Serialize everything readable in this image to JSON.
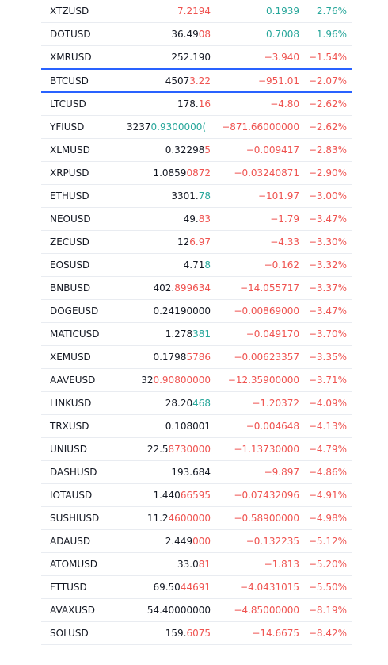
{
  "colors": {
    "up": "#26a69a",
    "down": "#ef5350",
    "neutral": "#131722",
    "selection": "#2962ff"
  },
  "rows": [
    {
      "symbol": "XTZUSD",
      "last_a": "",
      "last_b": "7.2194",
      "last_b_dir": "down",
      "change": "0.1939",
      "change_pct": "2.76%",
      "dir": "up"
    },
    {
      "symbol": "DOTUSD",
      "last_a": "36.49",
      "last_b": "08",
      "last_b_dir": "down",
      "change": "0.7008",
      "change_pct": "1.96%",
      "dir": "up"
    },
    {
      "symbol": "XMRUSD",
      "last_a": "252.190",
      "last_b": "",
      "last_b_dir": "down",
      "change": "−3.940",
      "change_pct": "−1.54%",
      "dir": "down"
    },
    {
      "symbol": "BTCUSD",
      "last_a": "4507",
      "last_b": "3.22",
      "last_b_dir": "down",
      "change": "−951.01",
      "change_pct": "−2.07%",
      "dir": "down",
      "selected": true
    },
    {
      "symbol": "LTCUSD",
      "last_a": "178.",
      "last_b": "16",
      "last_b_dir": "down",
      "change": "−4.80",
      "change_pct": "−2.62%",
      "dir": "down"
    },
    {
      "symbol": "YFIUSD",
      "last_a": "3237",
      "last_b": "0.9300000(",
      "last_b_dir": "up",
      "change": "−871.66000000",
      "change_pct": "−2.62%",
      "dir": "down"
    },
    {
      "symbol": "XLMUSD",
      "last_a": "0.32298",
      "last_b": "5",
      "last_b_dir": "down",
      "change": "−0.009417",
      "change_pct": "−2.83%",
      "dir": "down"
    },
    {
      "symbol": "XRPUSD",
      "last_a": "1.0859",
      "last_b": "0872",
      "last_b_dir": "down",
      "change": "−0.03240871",
      "change_pct": "−2.90%",
      "dir": "down"
    },
    {
      "symbol": "ETHUSD",
      "last_a": "3301.",
      "last_b": "78",
      "last_b_dir": "up",
      "change": "−101.97",
      "change_pct": "−3.00%",
      "dir": "down"
    },
    {
      "symbol": "NEOUSD",
      "last_a": "49.",
      "last_b": "83",
      "last_b_dir": "down",
      "change": "−1.79",
      "change_pct": "−3.47%",
      "dir": "down"
    },
    {
      "symbol": "ZECUSD",
      "last_a": "12",
      "last_b": "6.97",
      "last_b_dir": "down",
      "change": "−4.33",
      "change_pct": "−3.30%",
      "dir": "down"
    },
    {
      "symbol": "EOSUSD",
      "last_a": "4.71",
      "last_b": "8",
      "last_b_dir": "up",
      "change": "−0.162",
      "change_pct": "−3.32%",
      "dir": "down"
    },
    {
      "symbol": "BNBUSD",
      "last_a": "402.",
      "last_b": "899634",
      "last_b_dir": "down",
      "change": "−14.055717",
      "change_pct": "−3.37%",
      "dir": "down"
    },
    {
      "symbol": "DOGEUSD",
      "last_a": "0.24190000",
      "last_b": "",
      "last_b_dir": "down",
      "change": "−0.00869000",
      "change_pct": "−3.47%",
      "dir": "down"
    },
    {
      "symbol": "MATICUSD",
      "last_a": "1.278",
      "last_b": "381",
      "last_b_dir": "up",
      "change": "−0.049170",
      "change_pct": "−3.70%",
      "dir": "down"
    },
    {
      "symbol": "XEMUSD",
      "last_a": "0.1798",
      "last_b": "5786",
      "last_b_dir": "down",
      "change": "−0.00623357",
      "change_pct": "−3.35%",
      "dir": "down"
    },
    {
      "symbol": "AAVEUSD",
      "last_a": "32",
      "last_b": "0.90800000",
      "last_b_dir": "down",
      "change": "−12.35900000",
      "change_pct": "−3.71%",
      "dir": "down"
    },
    {
      "symbol": "LINKUSD",
      "last_a": "28.20",
      "last_b": "468",
      "last_b_dir": "up",
      "change": "−1.20372",
      "change_pct": "−4.09%",
      "dir": "down"
    },
    {
      "symbol": "TRXUSD",
      "last_a": "0.108001",
      "last_b": "",
      "last_b_dir": "down",
      "change": "−0.004648",
      "change_pct": "−4.13%",
      "dir": "down"
    },
    {
      "symbol": "UNIUSD",
      "last_a": "22.5",
      "last_b": "8730000",
      "last_b_dir": "down",
      "change": "−1.13730000",
      "change_pct": "−4.79%",
      "dir": "down"
    },
    {
      "symbol": "DASHUSD",
      "last_a": "193.684",
      "last_b": "",
      "last_b_dir": "down",
      "change": "−9.897",
      "change_pct": "−4.86%",
      "dir": "down"
    },
    {
      "symbol": "IOTAUSD",
      "last_a": "1.440",
      "last_b": "66595",
      "last_b_dir": "down",
      "change": "−0.07432096",
      "change_pct": "−4.91%",
      "dir": "down"
    },
    {
      "symbol": "SUSHIUSD",
      "last_a": "11.2",
      "last_b": "4600000",
      "last_b_dir": "down",
      "change": "−0.58900000",
      "change_pct": "−4.98%",
      "dir": "down"
    },
    {
      "symbol": "ADAUSD",
      "last_a": "2.449",
      "last_b": "000",
      "last_b_dir": "down",
      "change": "−0.132235",
      "change_pct": "−5.12%",
      "dir": "down"
    },
    {
      "symbol": "ATOMUSD",
      "last_a": "33.0",
      "last_b": "81",
      "last_b_dir": "down",
      "change": "−1.813",
      "change_pct": "−5.20%",
      "dir": "down"
    },
    {
      "symbol": "FTTUSD",
      "last_a": "69.50",
      "last_b": "44691",
      "last_b_dir": "down",
      "change": "−4.0431015",
      "change_pct": "−5.50%",
      "dir": "down"
    },
    {
      "symbol": "AVAXUSD",
      "last_a": "54.40000000",
      "last_b": "",
      "last_b_dir": "down",
      "change": "−4.85000000",
      "change_pct": "−8.19%",
      "dir": "down"
    },
    {
      "symbol": "SOLUSD",
      "last_a": "159.",
      "last_b": "6075",
      "last_b_dir": "down",
      "change": "−14.6675",
      "change_pct": "−8.42%",
      "dir": "down"
    }
  ]
}
